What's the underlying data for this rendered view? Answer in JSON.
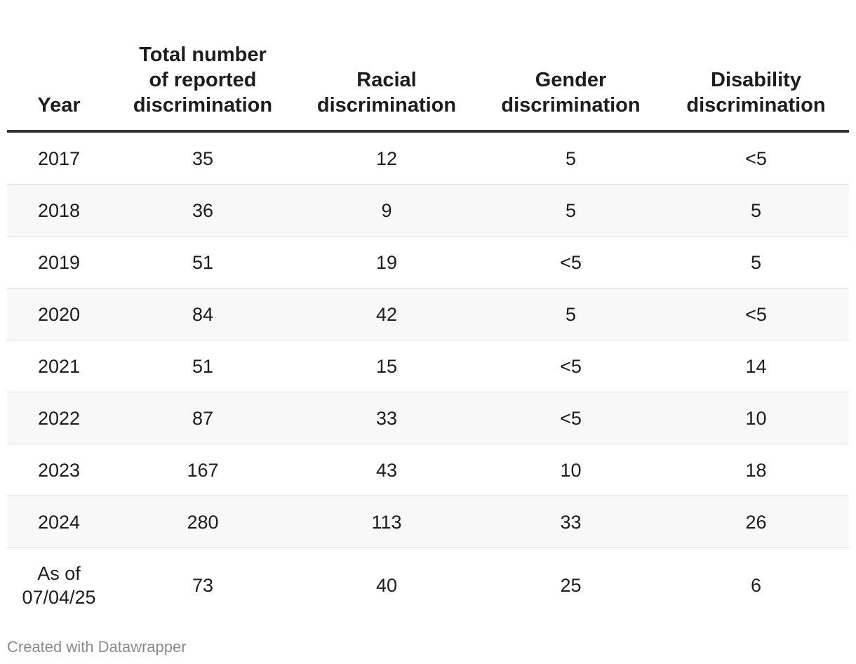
{
  "chart_data": {
    "type": "table",
    "columns": [
      "Year",
      "Total number\nof reported\ndiscrimination",
      "Racial\ndiscrimination",
      "Gender\ndiscrimination",
      "Disability\ndiscrimination"
    ],
    "rows": [
      [
        "2017",
        "35",
        "12",
        "5",
        "<5"
      ],
      [
        "2018",
        "36",
        "9",
        "5",
        "5"
      ],
      [
        "2019",
        "51",
        "19",
        "<5",
        "5"
      ],
      [
        "2020",
        "84",
        "42",
        "5",
        "<5"
      ],
      [
        "2021",
        "51",
        "15",
        "<5",
        "14"
      ],
      [
        "2022",
        "87",
        "33",
        "<5",
        "10"
      ],
      [
        "2023",
        "167",
        "43",
        "10",
        "18"
      ],
      [
        "2024",
        "280",
        "113",
        "33",
        "26"
      ],
      [
        "As of\n07/04/25",
        "73",
        "40",
        "25",
        "6"
      ]
    ]
  },
  "footer": {
    "credit": "Created with Datawrapper"
  },
  "colors": {
    "header_rule": "#333333",
    "row_stripe": "#f8f8f8",
    "row_divider": "#dddddd",
    "footer_text": "#8a8a8a"
  }
}
